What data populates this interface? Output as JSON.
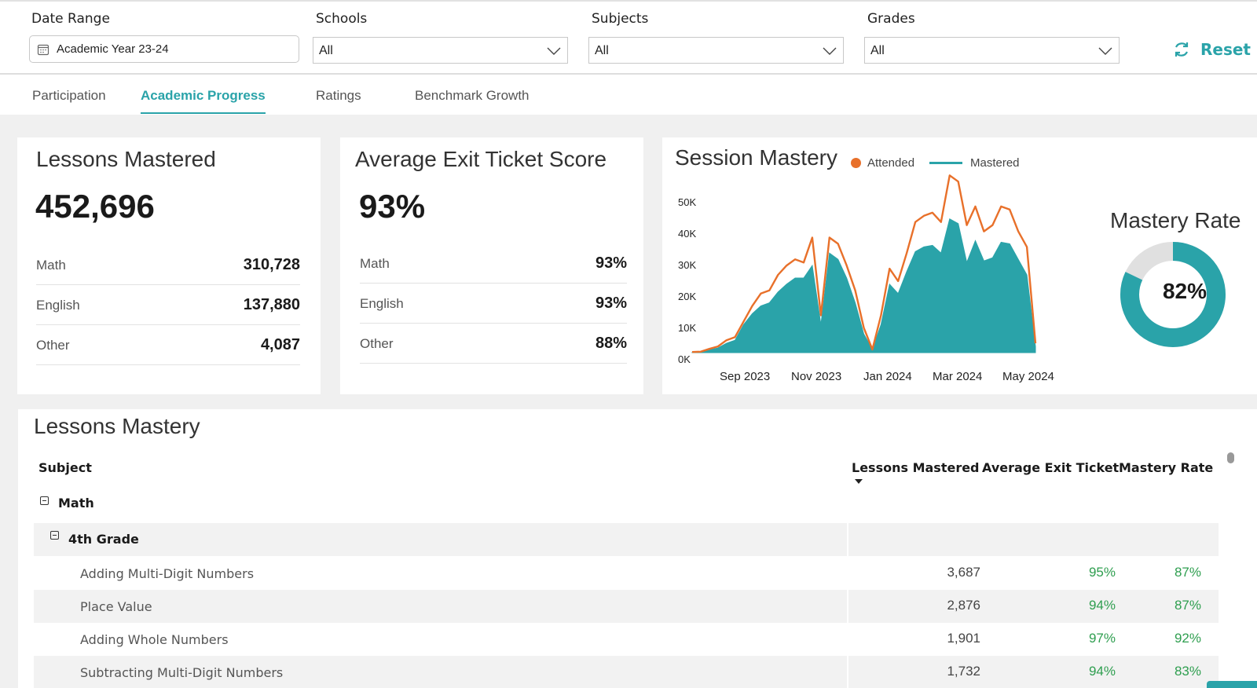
{
  "filters": {
    "date_range": {
      "label": "Date Range",
      "value": "Academic Year 23-24"
    },
    "schools": {
      "label": "Schools",
      "value": "All"
    },
    "subjects": {
      "label": "Subjects",
      "value": "All"
    },
    "grades": {
      "label": "Grades",
      "value": "All"
    },
    "reset_label": "Reset",
    "icons": {
      "calendar": "calendar-icon",
      "chevron": "chevron-down-icon",
      "reset": "refresh-icon"
    }
  },
  "tabs": [
    {
      "label": "Participation",
      "active": false
    },
    {
      "label": "Academic Progress",
      "active": true
    },
    {
      "label": "Ratings",
      "active": false
    },
    {
      "label": "Benchmark Growth",
      "active": false
    }
  ],
  "lessons_mastered": {
    "title": "Lessons Mastered",
    "total": "452,696",
    "rows": [
      {
        "label": "Math",
        "value": "310,728"
      },
      {
        "label": "English",
        "value": "137,880"
      },
      {
        "label": "Other",
        "value": "4,087"
      }
    ]
  },
  "exit_ticket": {
    "title": "Average Exit Ticket Score",
    "total": "93%",
    "rows": [
      {
        "label": "Math",
        "value": "93%"
      },
      {
        "label": "English",
        "value": "93%"
      },
      {
        "label": "Other",
        "value": "88%"
      }
    ]
  },
  "session_mastery": {
    "title": "Session Mastery",
    "legend": {
      "attended": "Attended",
      "mastered": "Mastered"
    }
  },
  "mastery_rate": {
    "title": "Mastery Rate",
    "value": "82%",
    "fraction": 0.82
  },
  "chart_data": [
    {
      "type": "area",
      "title": "Session Mastery",
      "xlabel": "",
      "ylabel": "",
      "ylim": [
        0,
        55000
      ],
      "y_ticks": [
        "0K",
        "10K",
        "20K",
        "30K",
        "40K",
        "50K"
      ],
      "y_tick_values": [
        0,
        10000,
        20000,
        30000,
        40000,
        50000
      ],
      "x_ticks": [
        "Sep 2023",
        "Nov 2023",
        "Jan 2024",
        "Mar 2024",
        "May 2024"
      ],
      "x_tick_positions": [
        5.5,
        13.5,
        21.5,
        29.5,
        37.5
      ],
      "x_count": 41,
      "colors": {
        "attended": "#e8702a",
        "mastered": "#2aa3a9"
      },
      "series": [
        {
          "name": "Attended",
          "style": "line",
          "values": [
            200,
            300,
            1200,
            2000,
            4000,
            5000,
            10000,
            15000,
            19000,
            20000,
            25000,
            28000,
            30000,
            29000,
            37000,
            12000,
            37000,
            35000,
            28000,
            20000,
            8000,
            1000,
            12000,
            27000,
            23000,
            32000,
            42000,
            44000,
            45000,
            42000,
            57000,
            55000,
            41000,
            47000,
            39000,
            41000,
            47000,
            46000,
            39000,
            34000,
            3000
          ]
        },
        {
          "name": "Mastered",
          "style": "area",
          "values": [
            100,
            200,
            900,
            1500,
            3000,
            4000,
            9000,
            12500,
            15000,
            16000,
            19500,
            22000,
            24000,
            24000,
            28000,
            9000,
            32000,
            30000,
            24000,
            16000,
            6000,
            1000,
            9000,
            22000,
            19000,
            26000,
            32500,
            34000,
            34500,
            32000,
            43000,
            41500,
            29000,
            36000,
            29500,
            30500,
            35500,
            35000,
            30000,
            25000,
            2000
          ]
        }
      ]
    },
    {
      "type": "pie",
      "title": "Mastery Rate",
      "categories": [
        "Mastered",
        "Not Mastered"
      ],
      "values": [
        82,
        18
      ],
      "colors": [
        "#2aa3a9",
        "#e0e0e0"
      ]
    }
  ],
  "lessons_table": {
    "title": "Lessons Mastery",
    "columns": [
      "Subject",
      "Lessons Mastered",
      "Average Exit Ticket",
      "Mastery Rate"
    ],
    "groups": [
      {
        "subject": "Math",
        "grades": [
          {
            "grade": "4th Grade",
            "rows": [
              {
                "name": "Adding Multi-Digit Numbers",
                "lessons": "3,687",
                "exit": "95%",
                "rate": "87%"
              },
              {
                "name": "Place Value",
                "lessons": "2,876",
                "exit": "94%",
                "rate": "87%"
              },
              {
                "name": "Adding Whole Numbers",
                "lessons": "1,901",
                "exit": "97%",
                "rate": "92%"
              },
              {
                "name": "Subtracting Multi-Digit Numbers",
                "lessons": "1,732",
                "exit": "94%",
                "rate": "83%"
              }
            ]
          }
        ]
      }
    ]
  }
}
